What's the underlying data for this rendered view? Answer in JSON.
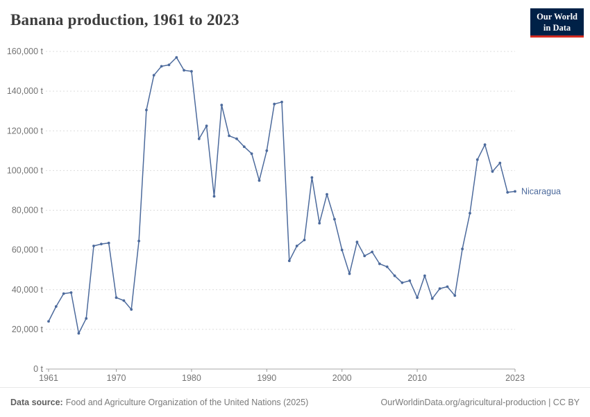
{
  "header": {
    "title": "Banana production, 1961 to 2023",
    "logo": {
      "line1": "Our World",
      "line2": "in Data"
    }
  },
  "footer": {
    "datasource_label": "Data source:",
    "datasource_text": "Food and Agriculture Organization of the United Nations (2025)",
    "attribution": "OurWorldinData.org/agricultural-production | CC BY"
  },
  "colors": {
    "line": "#4c6a9c",
    "logo_bg": "#002147",
    "logo_accent": "#d42b21",
    "gridline": "#dcdcdc",
    "axis_line": "#a8a8a8",
    "tick_text": "#737373"
  },
  "chart_data": {
    "type": "line",
    "title": "Banana production, 1961 to 2023",
    "unit": "t",
    "grid": "horizontal-dashed",
    "legend_position": "right-end-label",
    "ylim": [
      0,
      160000
    ],
    "yticks": [
      0,
      20000,
      40000,
      60000,
      80000,
      100000,
      120000,
      140000,
      160000
    ],
    "ytick_labels": [
      "0 t",
      "20,000 t",
      "40,000 t",
      "60,000 t",
      "80,000 t",
      "100,000 t",
      "120,000 t",
      "140,000 t",
      "160,000 t"
    ],
    "xticks": [
      1961,
      1970,
      1980,
      1990,
      2000,
      2010,
      2023
    ],
    "x": [
      1961,
      1962,
      1963,
      1964,
      1965,
      1966,
      1967,
      1968,
      1969,
      1970,
      1971,
      1972,
      1973,
      1974,
      1975,
      1976,
      1977,
      1978,
      1979,
      1980,
      1981,
      1982,
      1983,
      1984,
      1985,
      1986,
      1987,
      1988,
      1989,
      1990,
      1991,
      1992,
      1993,
      1994,
      1995,
      1996,
      1997,
      1998,
      1999,
      2000,
      2001,
      2002,
      2003,
      2004,
      2005,
      2006,
      2007,
      2008,
      2009,
      2010,
      2011,
      2012,
      2013,
      2014,
      2015,
      2016,
      2017,
      2018,
      2019,
      2020,
      2021,
      2022,
      2023
    ],
    "series": [
      {
        "name": "Nicaragua",
        "color": "#4c6a9c",
        "values": [
          24000,
          31500,
          38000,
          38500,
          18000,
          25500,
          62000,
          63000,
          63500,
          36000,
          34500,
          30000,
          64500,
          130500,
          148000,
          152500,
          153200,
          157000,
          150500,
          150000,
          116000,
          122500,
          87000,
          133000,
          117500,
          116000,
          112000,
          108500,
          95000,
          110000,
          133500,
          134500,
          54500,
          62000,
          65000,
          96500,
          73500,
          88000,
          75500,
          60000,
          48000,
          64000,
          57000,
          59000,
          53000,
          51500,
          47000,
          43500,
          44500,
          36000,
          47000,
          35500,
          40500,
          41500,
          37000,
          60500,
          78500,
          105500,
          113000,
          99500,
          103800,
          89000,
          89500
        ]
      }
    ]
  }
}
